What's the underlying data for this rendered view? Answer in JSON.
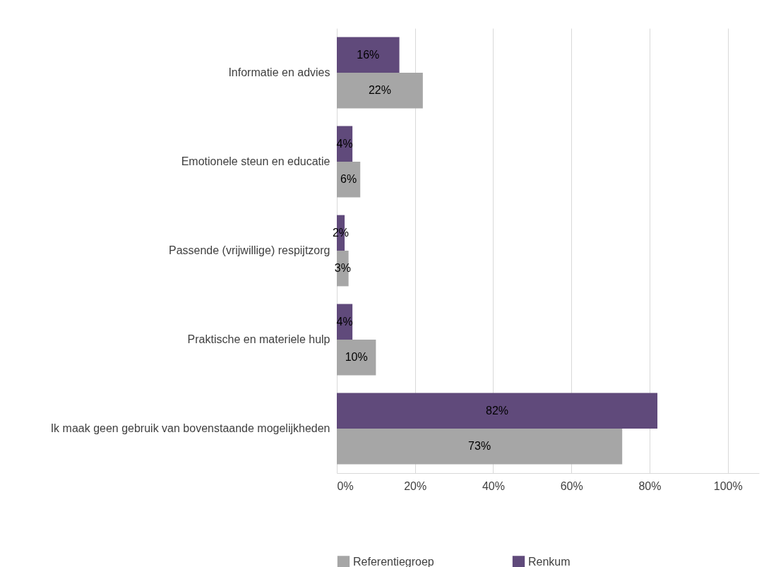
{
  "chart_data": {
    "type": "bar",
    "orientation": "horizontal",
    "categories": [
      "Informatie en advies",
      "Emotionele steun en educatie",
      "Passende (vrijwillige) respijtzorg",
      "Praktische en materiele hulp",
      "Ik maak geen gebruik van bovenstaande mogelijkheden"
    ],
    "series": [
      {
        "name": "Renkum",
        "color": "#604a7b",
        "values": [
          16,
          4,
          2,
          4,
          82
        ],
        "value_labels": [
          "16%",
          "4%",
          "2%",
          "4%",
          "82%"
        ]
      },
      {
        "name": "Referentiegroep",
        "color": "#a6a6a6",
        "values": [
          22,
          6,
          3,
          10,
          73
        ],
        "value_labels": [
          "22%",
          "6%",
          "3%",
          "10%",
          "73%"
        ]
      }
    ],
    "xlim": [
      0,
      108
    ],
    "xticks": [
      {
        "value": 0,
        "label": "0%"
      },
      {
        "value": 20,
        "label": "20%"
      },
      {
        "value": 40,
        "label": "40%"
      },
      {
        "value": 60,
        "label": "60%"
      },
      {
        "value": 80,
        "label": "80%"
      },
      {
        "value": 100,
        "label": "100%"
      }
    ],
    "grid": "x",
    "legend": "bottom"
  }
}
